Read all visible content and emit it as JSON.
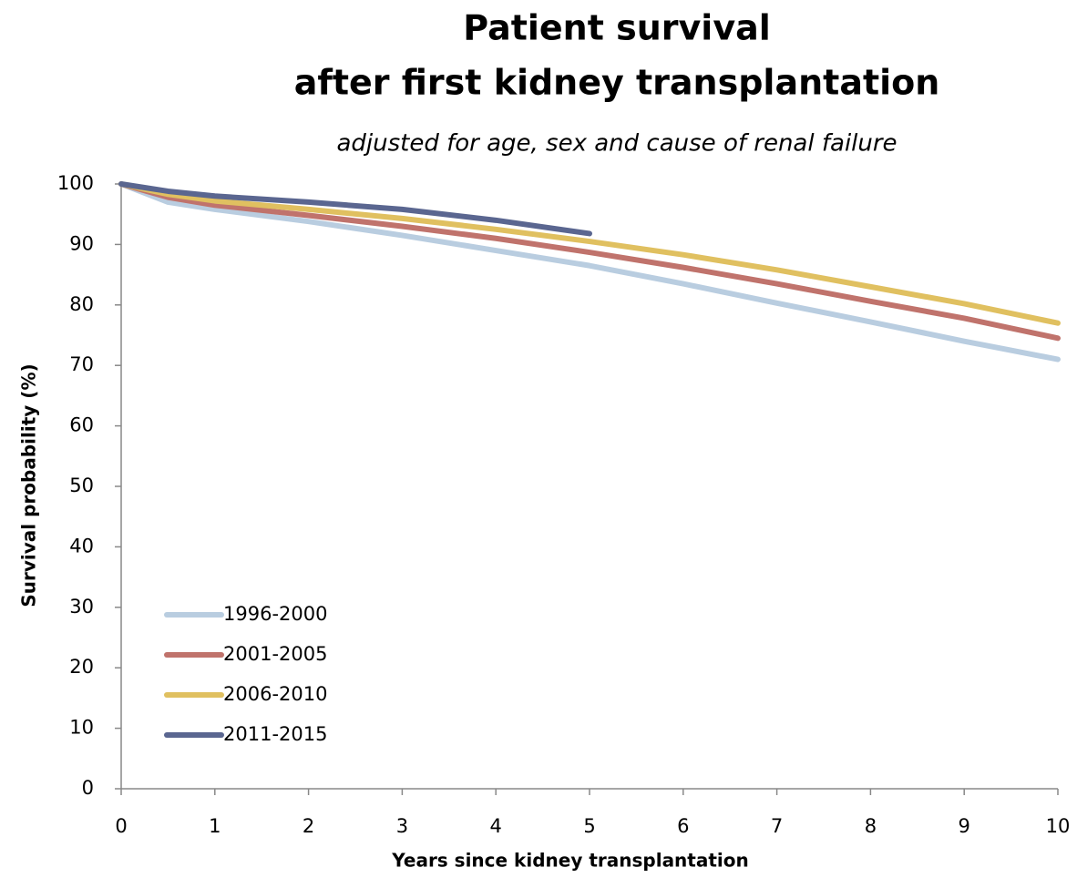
{
  "chart_data": {
    "type": "line",
    "title": [
      "Patient survival",
      "after first kidney transplantation"
    ],
    "subtitle": "adjusted for age, sex and cause of renal failure",
    "xlabel": "Years since kidney transplantation",
    "ylabel": "Survival probability (%)",
    "x": [
      0,
      0.5,
      1,
      2,
      3,
      4,
      5,
      6,
      7,
      8,
      9,
      10
    ],
    "series": [
      {
        "name": "1996-2000",
        "color": "#b9cde0",
        "values": [
          100,
          97,
          95.8,
          93.8,
          91.5,
          89,
          86.5,
          83.5,
          80.3,
          77.2,
          74,
          71
        ]
      },
      {
        "name": "2001-2005",
        "color": "#c0736c",
        "values": [
          100,
          97.8,
          96.5,
          94.8,
          93,
          91,
          88.7,
          86.2,
          83.5,
          80.6,
          77.8,
          74.5
        ]
      },
      {
        "name": "2006-2010",
        "color": "#e0c060",
        "values": [
          100,
          98.3,
          97.2,
          95.8,
          94.3,
          92.5,
          90.5,
          88.3,
          85.8,
          83,
          80.2,
          77
        ]
      },
      {
        "name": "2011-2015",
        "color": "#5a6690",
        "values": [
          100,
          98.8,
          98,
          97,
          95.8,
          94,
          91.8,
          null,
          null,
          null,
          null,
          null
        ]
      }
    ],
    "xlim": [
      0,
      10
    ],
    "xticks": [
      0,
      1,
      2,
      3,
      4,
      5,
      6,
      7,
      8,
      9,
      10
    ],
    "ylim": [
      0,
      100
    ],
    "yticks": [
      0,
      10,
      20,
      30,
      40,
      50,
      60,
      70,
      80,
      90,
      100
    ],
    "grid": false,
    "legend": "lower left"
  }
}
